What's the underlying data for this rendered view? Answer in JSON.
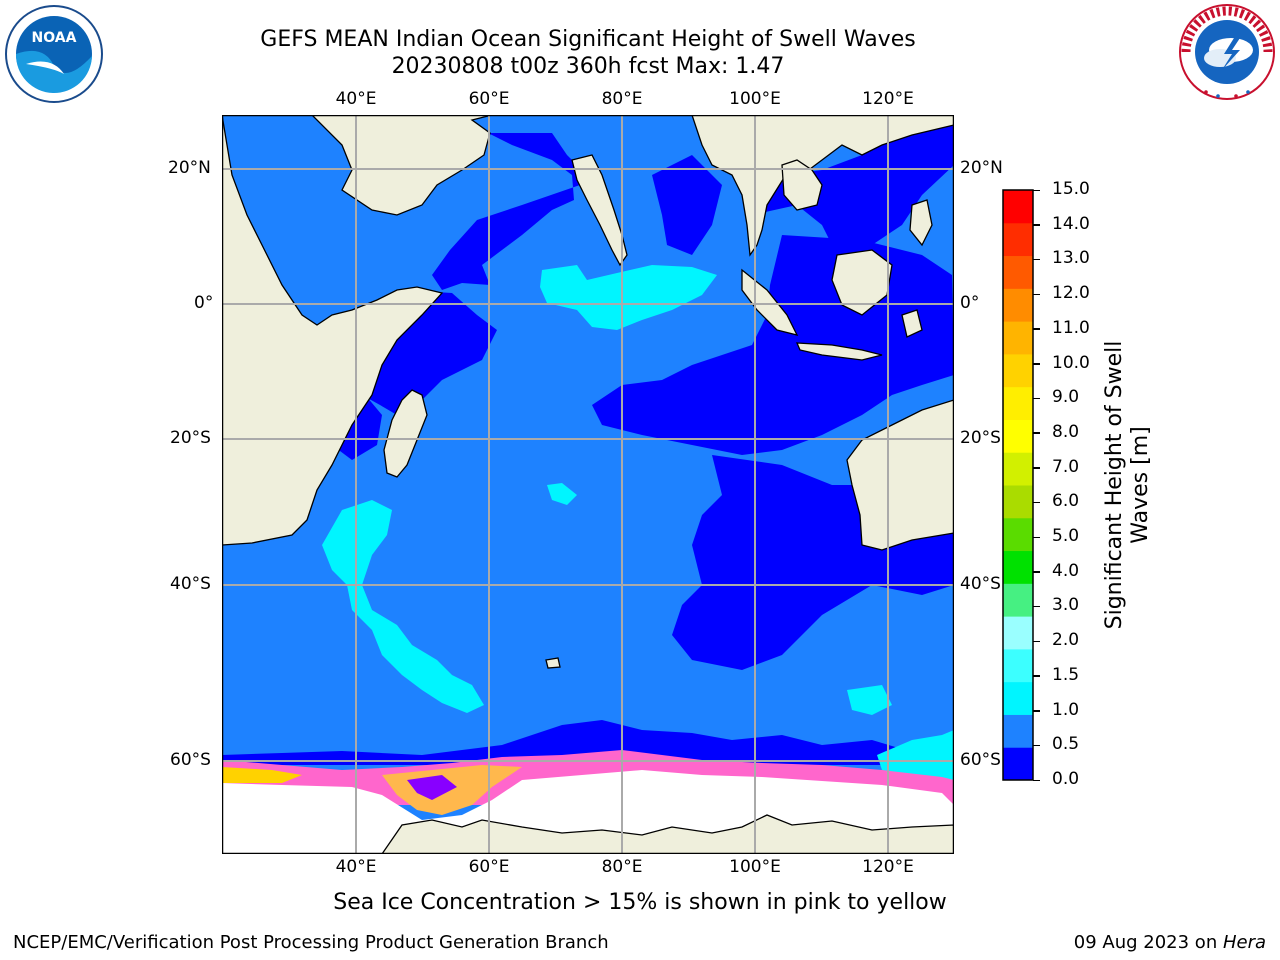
{
  "title_line1": "GEFS MEAN Indian Ocean Significant Height of Swell Waves",
  "title_line2": "20230808 t00z 360h fcst   Max: 1.47",
  "lon_labels": [
    "40°E",
    "60°E",
    "80°E",
    "100°E",
    "120°E"
  ],
  "lat_labels": [
    "20°N",
    "0°",
    "20°S",
    "40°S",
    "60°S"
  ],
  "colorbar": {
    "label_line1": "Significant Height of Swell",
    "label_line2": "Waves [m]",
    "ticks": [
      "0.0",
      "0.5",
      "1.0",
      "1.5",
      "2.0",
      "3.0",
      "4.0",
      "5.0",
      "6.0",
      "7.0",
      "8.0",
      "9.0",
      "10.0",
      "11.0",
      "12.0",
      "13.0",
      "14.0",
      "15.0"
    ],
    "colors": [
      "#0000ff",
      "#1e82ff",
      "#00f5ff",
      "#3cffff",
      "#9affff",
      "#46f082",
      "#00e100",
      "#5adc00",
      "#aadc00",
      "#d2f000",
      "#ffff00",
      "#ffee00",
      "#ffd200",
      "#ffb400",
      "#ff8c00",
      "#ff5a00",
      "#ff2d00",
      "#ff0000"
    ]
  },
  "sea_ice_note": "Sea Ice Concentration > 15% is shown in pink to yellow",
  "footer_left": "NCEP/EMC/Verification Post Processing Product Generation Branch",
  "footer_date": "09 Aug 2023 on ",
  "footer_host": "Hera",
  "logos": {
    "noaa": "NOAA",
    "nws": "NATIONAL WEATHER SERVICE"
  }
}
